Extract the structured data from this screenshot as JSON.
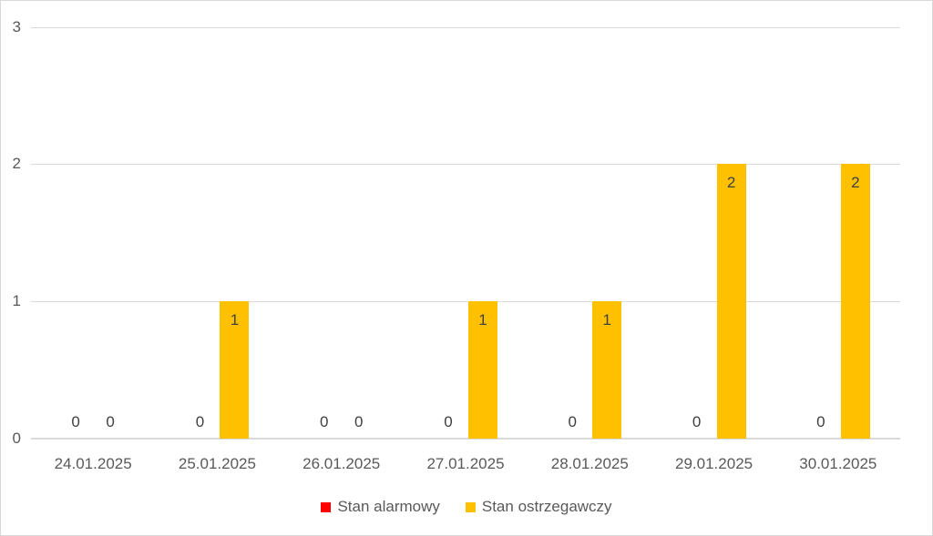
{
  "chart_data": {
    "type": "bar",
    "title": "",
    "categories": [
      "24.01.2025",
      "25.01.2025",
      "26.01.2025",
      "27.01.2025",
      "28.01.2025",
      "29.01.2025",
      "30.01.2025"
    ],
    "series": [
      {
        "name": "Stan alarmowy",
        "color": "#FF0000",
        "values": [
          0,
          0,
          0,
          0,
          0,
          0,
          0
        ]
      },
      {
        "name": "Stan ostrzegawczy",
        "color": "#FFC000",
        "values": [
          0,
          1,
          0,
          1,
          1,
          2,
          2
        ]
      }
    ],
    "xlabel": "",
    "ylabel": "",
    "ylim": [
      0,
      3
    ],
    "yticks": [
      "0",
      "1",
      "2",
      "3"
    ],
    "grid": true,
    "legend_position": "bottom",
    "data_labels": "shown for every bar; zeros printed above axis, non-zero values inside bar top"
  },
  "colors": {
    "background": "#FFFFFF",
    "gridline": "#D9D9D9",
    "axis_line": "#D9D9D9",
    "canvas_border": "#D9D9D9",
    "tick_text": "#595959",
    "data_label_text": "#404040",
    "series_alarm": "#FF0000",
    "series_warning": "#FFC000"
  }
}
